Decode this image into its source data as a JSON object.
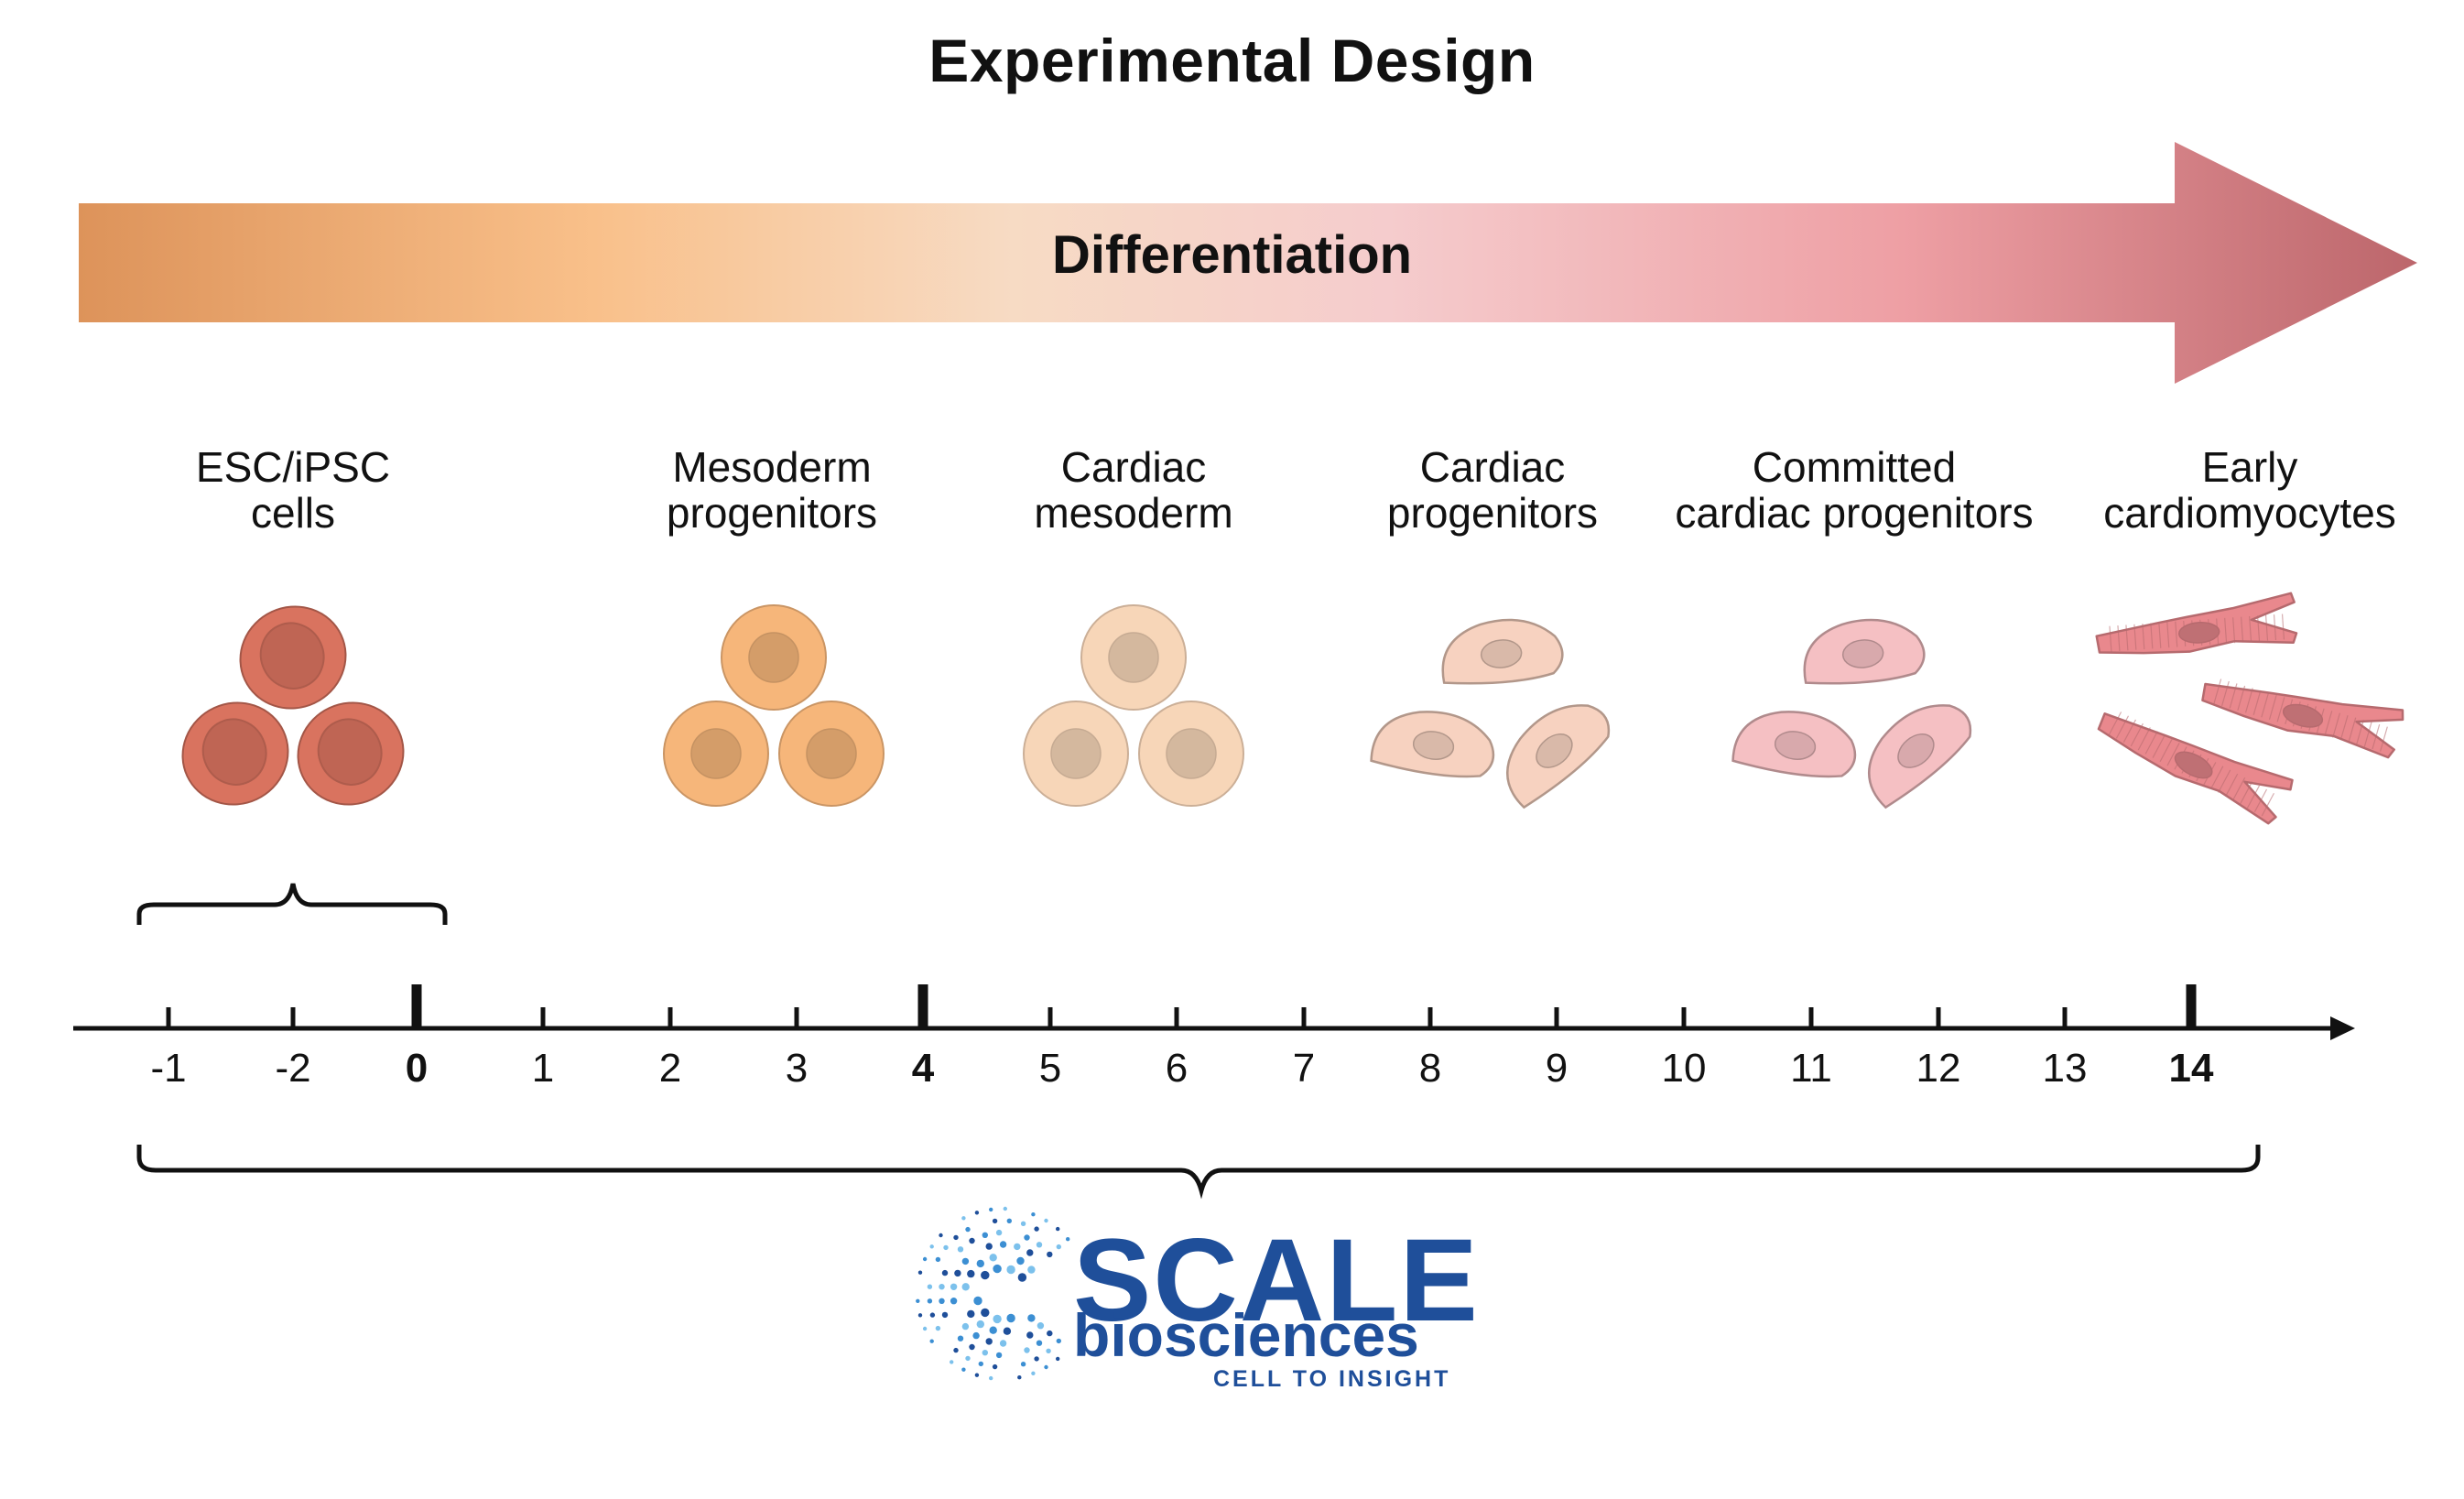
{
  "title": "Experimental Design",
  "arrow": {
    "label": "Differentiation",
    "colors": [
      "#dd935a",
      "#f9c08a",
      "#f7dbc4",
      "#f5cccd",
      "#ee9fa4",
      "#bc666b"
    ]
  },
  "stages": [
    {
      "line1": "ESC/iPSC",
      "line2": "cells",
      "icon": "stem-cell-cluster-icon",
      "color": "#d9735f"
    },
    {
      "line1": "Mesoderm",
      "line2": "progenitors",
      "icon": "mesoderm-cell-cluster-icon",
      "color": "#f6b67a"
    },
    {
      "line1": "Cardiac",
      "line2": "mesoderm",
      "icon": "cardiac-mesoderm-cell-cluster-icon",
      "color": "#f7d6b8"
    },
    {
      "line1": "Cardiac",
      "line2": "progenitors",
      "icon": "cardiac-progenitor-cell-icon",
      "color": "#f7d2c0"
    },
    {
      "line1": "Committed",
      "line2": "cardiac progenitors",
      "icon": "committed-progenitor-cell-icon",
      "color": "#f5c0c3"
    },
    {
      "line1": "Early",
      "line2": "cardiomyocytes",
      "icon": "cardiomyocyte-cell-icon",
      "color": "#e9888d"
    }
  ],
  "timeline": {
    "ticks": [
      "-1",
      "-2",
      "0",
      "1",
      "2",
      "3",
      "4",
      "5",
      "6",
      "7",
      "8",
      "9",
      "10",
      "11",
      "12",
      "13",
      "14"
    ],
    "major": [
      "0",
      "4",
      "14"
    ]
  },
  "logo": {
    "word1": "SCALE",
    "word2": "biosciences",
    "tagline": "CELL TO INSIGHT",
    "color": "#1f4f9a",
    "dot_colors": [
      "#1f4f9a",
      "#3c8fd3",
      "#7cc1ec"
    ]
  }
}
